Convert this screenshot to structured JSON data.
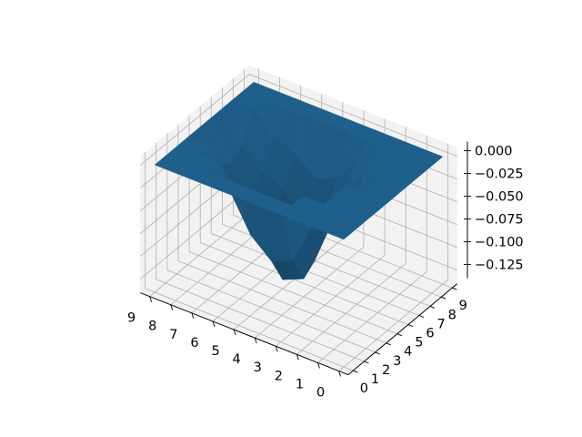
{
  "chart_data": {
    "type": "surface3d",
    "title": "",
    "xlabel": "",
    "ylabel": "",
    "zlabel": "",
    "x_ticks": [
      "0",
      "1",
      "2",
      "3",
      "4",
      "5",
      "6",
      "7",
      "8",
      "9"
    ],
    "y_ticks": [
      "0",
      "1",
      "2",
      "3",
      "4",
      "5",
      "6",
      "7",
      "8",
      "9"
    ],
    "z_ticks": [
      "0.000",
      "−0.025",
      "−0.050",
      "−0.075",
      "−0.100",
      "−0.125"
    ],
    "z_tick_values": [
      0,
      -0.025,
      -0.05,
      -0.075,
      -0.1,
      -0.125
    ],
    "xlim": [
      0,
      9
    ],
    "ylim": [
      0,
      9
    ],
    "zlim": [
      -0.14,
      0.01
    ],
    "grid": true,
    "surface_color": "#1f5f8b",
    "pane_color": "#f2f2f2",
    "grid_color": "#b0b0b0",
    "z_grid": [
      [
        0,
        0,
        0,
        0,
        0,
        0,
        0,
        0,
        0,
        0
      ],
      [
        0,
        0,
        0,
        0,
        0,
        0,
        0,
        0,
        0,
        0
      ],
      [
        0,
        0,
        0,
        0,
        0,
        -0.02,
        0,
        0,
        0,
        0
      ],
      [
        0,
        0,
        0,
        -0.04,
        -0.06,
        -0.05,
        -0.03,
        -0.01,
        0,
        0
      ],
      [
        0,
        0,
        -0.03,
        -0.09,
        -0.12,
        -0.11,
        -0.07,
        -0.04,
        0,
        0
      ],
      [
        0,
        0,
        -0.02,
        -0.1,
        -0.13,
        -0.12,
        -0.09,
        -0.05,
        0,
        0
      ],
      [
        0,
        0,
        -0.03,
        -0.08,
        -0.1,
        -0.09,
        -0.06,
        -0.03,
        0,
        0
      ],
      [
        0,
        0,
        0,
        -0.04,
        -0.06,
        -0.07,
        -0.05,
        -0.02,
        0,
        0
      ],
      [
        0,
        0,
        0,
        0,
        -0.03,
        -0.04,
        -0.03,
        0,
        0,
        0
      ],
      [
        0,
        0,
        0,
        0,
        0,
        0,
        0,
        0,
        0,
        0
      ]
    ]
  }
}
